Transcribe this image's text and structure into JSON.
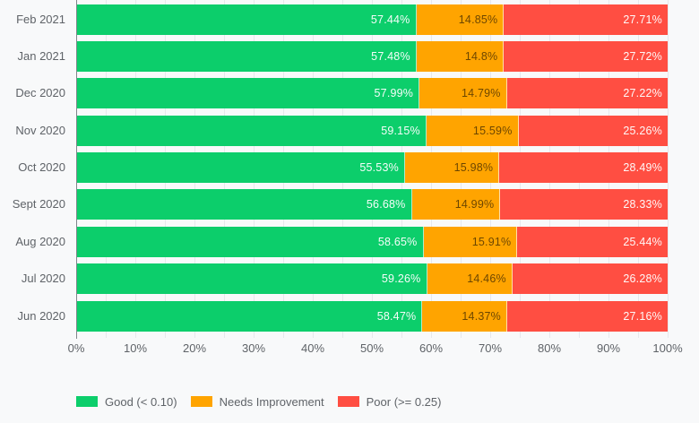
{
  "colors": {
    "background": "#f8f9fa",
    "gridline": "#e6e8ec",
    "axis_line": "#80868b",
    "axis_text": "#5f6368",
    "good": "#0CCE6B",
    "needs_improvement": "#FFA400",
    "poor": "#FF4E42",
    "value_text_on_color": "#ffffff"
  },
  "chart_data": {
    "type": "bar",
    "orientation": "horizontal",
    "stacked": true,
    "stack_total": 100,
    "xlabel": "",
    "ylabel": "",
    "xlim": [
      0,
      100
    ],
    "grid_interval_pct": 5,
    "tick_interval_pct": 10,
    "legend_position": "bottom",
    "categories": [
      "Feb 2021",
      "Jan 2021",
      "Dec 2020",
      "Nov 2020",
      "Oct 2020",
      "Sept 2020",
      "Aug 2020",
      "Jul 2020",
      "Jun 2020"
    ],
    "series": [
      {
        "name": "Good (< 0.10)",
        "color": "#0CCE6B",
        "values": [
          57.44,
          57.48,
          57.99,
          59.15,
          55.53,
          56.68,
          58.65,
          59.26,
          58.47
        ]
      },
      {
        "name": "Needs Improvement",
        "color": "#FFA400",
        "values": [
          14.85,
          14.8,
          14.79,
          15.59,
          15.98,
          14.99,
          15.91,
          14.46,
          14.37
        ]
      },
      {
        "name": "Poor (>= 0.25)",
        "color": "#FF4E42",
        "values": [
          27.71,
          27.72,
          27.22,
          25.26,
          28.49,
          28.33,
          25.44,
          26.28,
          27.16
        ]
      }
    ],
    "value_labels": [
      [
        "57.44%",
        "14.85%",
        "27.71%"
      ],
      [
        "57.48%",
        "14.8%",
        "27.72%"
      ],
      [
        "57.99%",
        "14.79%",
        "27.22%"
      ],
      [
        "59.15%",
        "15.59%",
        "25.26%"
      ],
      [
        "55.53%",
        "15.98%",
        "28.49%"
      ],
      [
        "56.68%",
        "14.99%",
        "28.33%"
      ],
      [
        "58.65%",
        "15.91%",
        "25.44%"
      ],
      [
        "59.26%",
        "14.46%",
        "26.28%"
      ],
      [
        "58.47%",
        "14.37%",
        "27.16%"
      ]
    ],
    "x_ticks": [
      "0%",
      "10%",
      "20%",
      "30%",
      "40%",
      "50%",
      "60%",
      "70%",
      "80%",
      "90%",
      "100%"
    ]
  },
  "legend": {
    "items": [
      {
        "label": "Good (< 0.10)",
        "color": "#0CCE6B"
      },
      {
        "label": "Needs Improvement",
        "color": "#FFA400"
      },
      {
        "label": "Poor (>= 0.25)",
        "color": "#FF4E42"
      }
    ]
  }
}
